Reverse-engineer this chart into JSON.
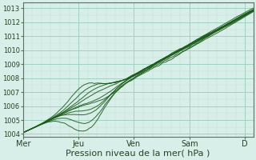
{
  "title": "",
  "xlabel": "Pression niveau de la mer( hPa )",
  "ylabel": "",
  "background_color": "#d8eee8",
  "plot_bg_color": "#d8eee8",
  "grid_major_color": "#99ccbb",
  "grid_minor_color": "#bbddcc",
  "line_color": "#1a5c1a",
  "ylim": [
    1003.8,
    1013.4
  ],
  "yticks": [
    1004,
    1005,
    1006,
    1007,
    1008,
    1009,
    1010,
    1011,
    1012,
    1013
  ],
  "xtick_labels": [
    "Mer",
    "Jeu",
    "Ven",
    "Sam",
    "D"
  ],
  "xtick_positions": [
    0,
    1,
    2,
    3,
    4
  ],
  "xlim": [
    0,
    4.15
  ],
  "xlabel_fontsize": 8,
  "ytick_fontsize": 6,
  "xtick_fontsize": 7
}
